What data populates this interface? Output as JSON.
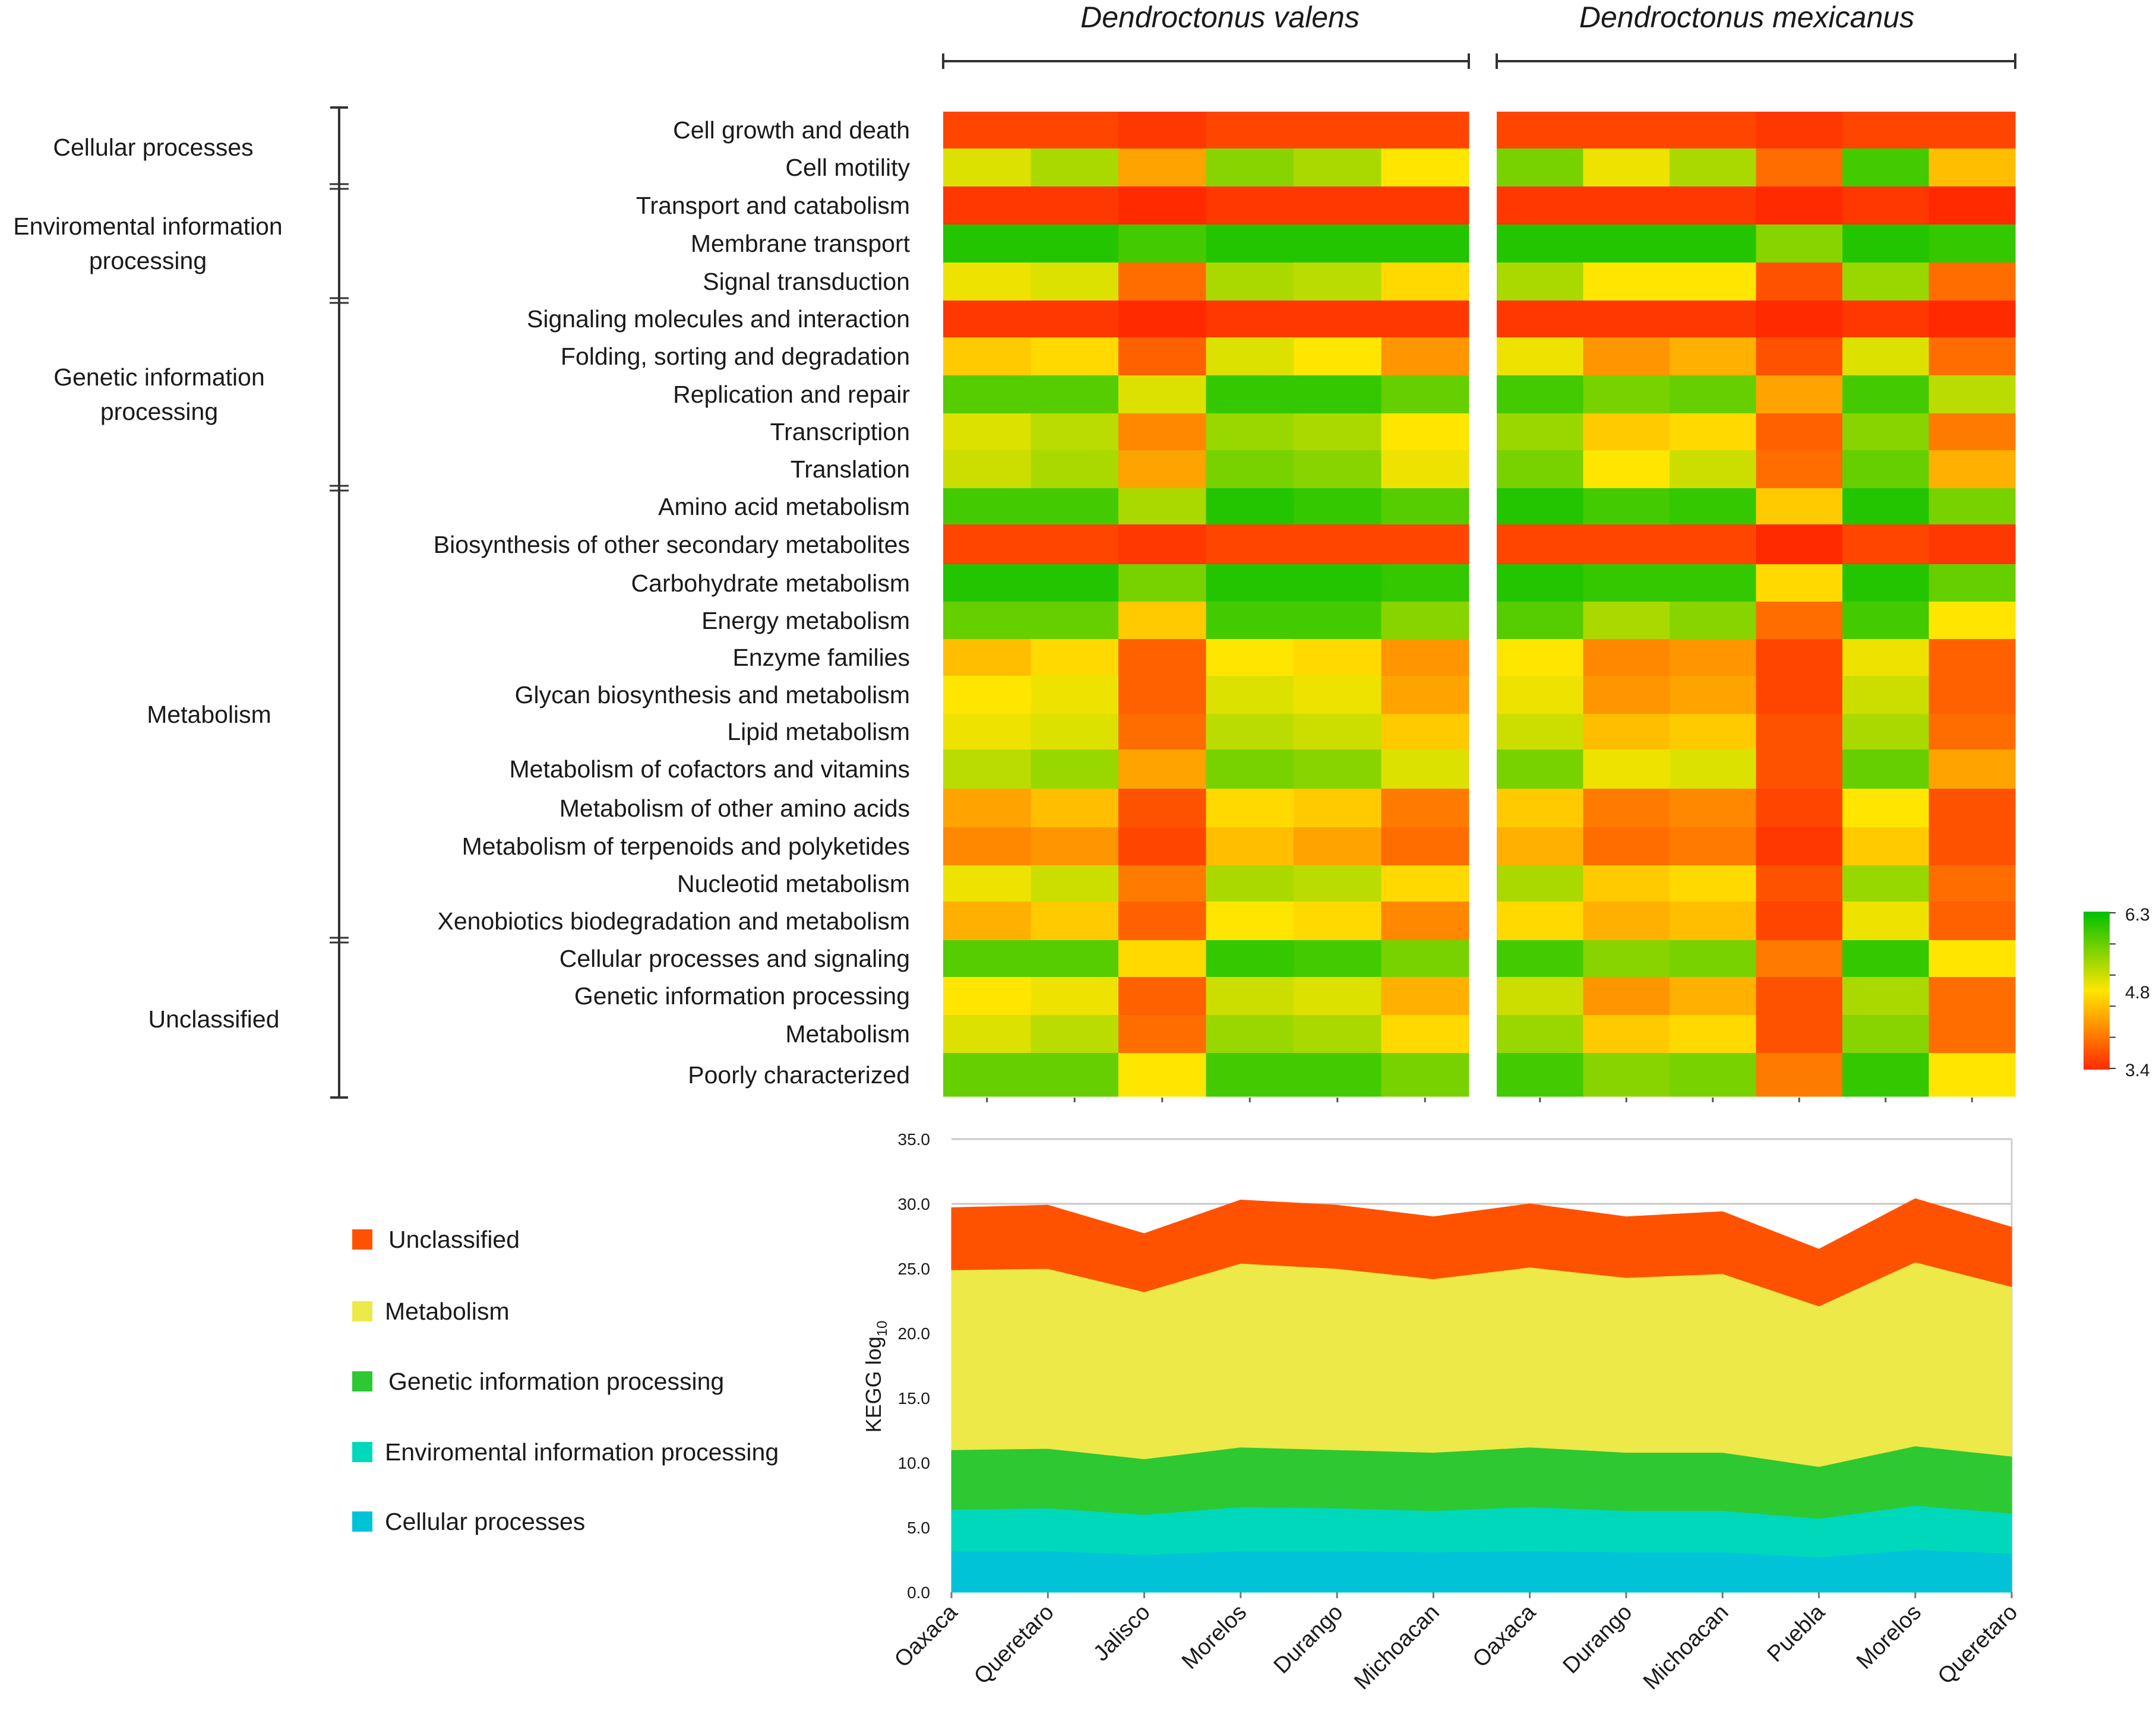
{
  "chart_data": [
    {
      "type": "heatmap",
      "title": "",
      "groups": [
        {
          "name": "Dendroctonus valens",
          "columns": [
            "Oaxaca",
            "Queretaro",
            "Jalisco",
            "Morelos",
            "Durango",
            "Michoacan"
          ]
        },
        {
          "name": "Dendroctonus mexicanus",
          "columns": [
            "Oaxaca",
            "Durango",
            "Michoacan",
            "Puebla",
            "Morelos",
            "Queretaro"
          ]
        }
      ],
      "rows": [
        "Cell growth and death",
        "Cell motility",
        "Transport and catabolism",
        "Membrane transport",
        "Signal transduction",
        "Signaling molecules and interaction",
        "Folding, sorting and degradation",
        "Replication and repair",
        "Transcription",
        "Translation",
        "Amino acid metabolism",
        "Biosynthesis of other secondary metabolites",
        "Carbohydrate metabolism",
        "Energy metabolism",
        "Enzyme families",
        "Glycan biosynthesis and metabolism",
        "Lipid metabolism",
        "Metabolism of cofactors and vitamins",
        "Metabolism of other amino acids",
        "Metabolism of terpenoids and polyketides",
        "Nucleotid metabolism",
        "Xenobiotics biodegradation and metabolism",
        "Cellular processes and signaling",
        "Genetic information processing",
        "Metabolism",
        "Poorly characterized"
      ],
      "values": [
        [
          3.6,
          3.6,
          3.5,
          3.6,
          3.6,
          3.6,
          3.6,
          3.6,
          3.6,
          3.5,
          3.6,
          3.6
        ],
        [
          5.0,
          5.3,
          4.3,
          5.5,
          5.3,
          4.8,
          5.6,
          4.9,
          5.3,
          3.9,
          5.9,
          4.5
        ],
        [
          3.5,
          3.5,
          3.4,
          3.5,
          3.5,
          3.5,
          3.5,
          3.5,
          3.5,
          3.4,
          3.5,
          3.4
        ],
        [
          6.1,
          6.1,
          5.9,
          6.1,
          6.1,
          6.1,
          6.1,
          6.1,
          6.1,
          5.5,
          6.1,
          6.0
        ],
        [
          4.9,
          5.0,
          3.9,
          5.3,
          5.2,
          4.7,
          5.3,
          4.8,
          4.8,
          3.7,
          5.4,
          3.9
        ],
        [
          3.5,
          3.5,
          3.4,
          3.5,
          3.5,
          3.5,
          3.5,
          3.5,
          3.5,
          3.4,
          3.5,
          3.4
        ],
        [
          4.6,
          4.7,
          3.8,
          5.0,
          4.8,
          4.2,
          4.9,
          4.2,
          4.4,
          3.7,
          5.0,
          3.9
        ],
        [
          5.8,
          5.8,
          5.0,
          6.0,
          6.0,
          5.7,
          5.9,
          5.6,
          5.7,
          4.3,
          5.9,
          5.2
        ],
        [
          5.0,
          5.2,
          4.1,
          5.4,
          5.3,
          4.8,
          5.4,
          4.6,
          4.7,
          3.8,
          5.5,
          4.0
        ],
        [
          5.1,
          5.3,
          4.3,
          5.6,
          5.5,
          4.9,
          5.6,
          4.8,
          5.1,
          3.9,
          5.7,
          4.4
        ],
        [
          5.9,
          5.9,
          5.3,
          6.1,
          6.0,
          5.8,
          6.1,
          5.9,
          6.0,
          4.6,
          6.1,
          5.6
        ],
        [
          3.6,
          3.6,
          3.5,
          3.6,
          3.6,
          3.6,
          3.6,
          3.6,
          3.6,
          3.4,
          3.6,
          3.5
        ],
        [
          6.1,
          6.1,
          5.6,
          6.1,
          6.1,
          6.0,
          6.1,
          6.0,
          6.0,
          4.7,
          6.1,
          5.7
        ],
        [
          5.7,
          5.7,
          4.6,
          5.9,
          5.9,
          5.5,
          5.8,
          5.3,
          5.5,
          3.9,
          5.9,
          4.8
        ],
        [
          4.5,
          4.7,
          3.8,
          4.8,
          4.7,
          4.2,
          4.8,
          4.1,
          4.2,
          3.6,
          4.9,
          3.8
        ],
        [
          4.8,
          4.9,
          3.8,
          5.0,
          4.9,
          4.3,
          4.9,
          4.2,
          4.3,
          3.6,
          5.1,
          3.8
        ],
        [
          4.9,
          5.0,
          3.9,
          5.2,
          5.1,
          4.6,
          5.1,
          4.5,
          4.6,
          3.7,
          5.3,
          3.9
        ],
        [
          5.2,
          5.4,
          4.3,
          5.6,
          5.5,
          5.0,
          5.6,
          4.9,
          5.0,
          3.7,
          5.7,
          4.3
        ],
        [
          4.3,
          4.5,
          3.7,
          4.7,
          4.6,
          4.0,
          4.6,
          4.0,
          4.1,
          3.6,
          4.8,
          3.7
        ],
        [
          4.1,
          4.2,
          3.6,
          4.5,
          4.3,
          3.9,
          4.4,
          3.9,
          4.0,
          3.5,
          4.6,
          3.7
        ],
        [
          4.9,
          5.1,
          4.0,
          5.3,
          5.2,
          4.7,
          5.3,
          4.6,
          4.7,
          3.7,
          5.4,
          3.9
        ],
        [
          4.4,
          4.6,
          3.8,
          4.8,
          4.7,
          4.1,
          4.7,
          4.4,
          4.5,
          3.6,
          4.9,
          3.8
        ],
        [
          5.8,
          5.8,
          4.7,
          6.0,
          5.9,
          5.6,
          5.9,
          5.5,
          5.6,
          4.0,
          6.0,
          4.8
        ],
        [
          4.8,
          4.9,
          3.8,
          5.1,
          5.0,
          4.4,
          5.1,
          4.2,
          4.4,
          3.7,
          5.3,
          3.9
        ],
        [
          5.0,
          5.2,
          3.9,
          5.4,
          5.3,
          4.7,
          5.4,
          4.6,
          4.7,
          3.7,
          5.5,
          3.9
        ],
        [
          5.7,
          5.7,
          4.8,
          5.9,
          5.9,
          5.6,
          5.9,
          5.5,
          5.6,
          4.0,
          6.0,
          4.8
        ]
      ],
      "colorbar": {
        "min": 3.4,
        "mid": 4.8,
        "max": 6.3,
        "labels": [
          "6.3",
          "4.8",
          "3.4"
        ],
        "colors": [
          "#ff2a00",
          "#ffe600",
          "#00c000"
        ]
      },
      "categories": [
        {
          "name": "Cellular processes",
          "lines": [
            "Cellular processes"
          ],
          "rows": [
            0,
            1
          ]
        },
        {
          "name": "Enviromental information processing",
          "lines": [
            "Enviromental information",
            "processing"
          ],
          "rows": [
            2,
            4
          ]
        },
        {
          "name": "Genetic information processing",
          "lines": [
            "Genetic information",
            "processing"
          ],
          "rows": [
            5,
            9
          ]
        },
        {
          "name": "Metabolism",
          "lines": [
            "Metabolism"
          ],
          "rows": [
            10,
            21
          ]
        },
        {
          "name": "Unclassified",
          "lines": [
            "Unclassified"
          ],
          "rows": [
            22,
            25
          ]
        }
      ]
    },
    {
      "type": "area",
      "stacked": true,
      "title": "",
      "xlabel": "",
      "ylabel": "KEGG log",
      "ylabel_subscript": "10",
      "categories": [
        "Oaxaca",
        "Queretaro",
        "Jalisco",
        "Morelos",
        "Durango",
        "Michoacan",
        "Oaxaca",
        "Durango",
        "Michoacan",
        "Puebla",
        "Morelos",
        "Queretaro"
      ],
      "ylim": [
        0,
        35
      ],
      "yticks": [
        "0.0",
        "5.0",
        "10.0",
        "15.0",
        "20.0",
        "25.0",
        "30.0",
        "35.0"
      ],
      "series": [
        {
          "name": "Cellular processes",
          "color": "#00c3d8",
          "values": [
            3.2,
            3.2,
            2.9,
            3.2,
            3.2,
            3.1,
            3.2,
            3.1,
            3.1,
            2.7,
            3.3,
            3.0
          ]
        },
        {
          "name": "Enviromental information processing",
          "color": "#00d8bc",
          "values": [
            3.2,
            3.3,
            3.1,
            3.4,
            3.3,
            3.2,
            3.4,
            3.2,
            3.2,
            3.0,
            3.4,
            3.1
          ]
        },
        {
          "name": "Genetic information processing",
          "color": "#2ec832",
          "values": [
            4.6,
            4.6,
            4.3,
            4.6,
            4.5,
            4.5,
            4.6,
            4.5,
            4.5,
            4.0,
            4.6,
            4.4
          ]
        },
        {
          "name": "Metabolism",
          "color": "#ede948",
          "values": [
            13.9,
            13.9,
            12.9,
            14.2,
            14.0,
            13.4,
            13.9,
            13.5,
            13.8,
            12.4,
            14.2,
            13.1
          ]
        },
        {
          "name": "Unclassified",
          "color": "#ff5200",
          "values": [
            4.8,
            4.9,
            4.5,
            4.9,
            4.9,
            4.8,
            4.9,
            4.7,
            4.8,
            4.4,
            4.9,
            4.6
          ]
        }
      ],
      "legend_order": [
        "Unclassified",
        "Metabolism",
        "Genetic information processing",
        "Enviromental information processing",
        "Cellular processes"
      ],
      "legend": "left"
    }
  ]
}
